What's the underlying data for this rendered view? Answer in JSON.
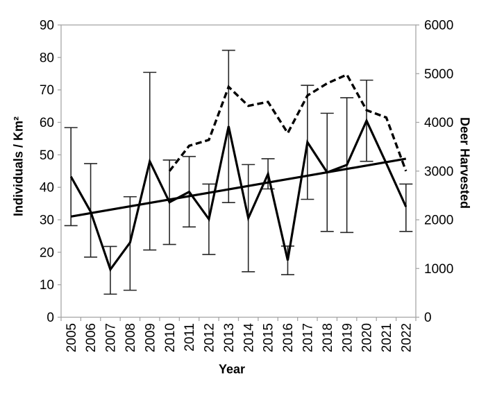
{
  "chart_data": {
    "type": "line",
    "title": "",
    "xlabel": "Year",
    "ylabel_left": "Individuals / Km²",
    "ylabel_right": "Deer Harvested",
    "grid": false,
    "legend": "none",
    "x_categories": [
      "2005",
      "2006",
      "2007",
      "2008",
      "2009",
      "2010",
      "2011",
      "2012",
      "2013",
      "2014",
      "2015",
      "2016",
      "2017",
      "2018",
      "2019",
      "2020",
      "2021",
      "2022"
    ],
    "left_axis": {
      "min": 0,
      "max": 90,
      "step": 10,
      "ticks": [
        0,
        10,
        20,
        30,
        40,
        50,
        60,
        70,
        80,
        90
      ]
    },
    "right_axis": {
      "min": 0,
      "max": 6000,
      "step": 1000,
      "ticks": [
        0,
        1000,
        2000,
        3000,
        4000,
        5000,
        6000
      ]
    },
    "series": [
      {
        "name": "individuals-per-km2",
        "axis": "left",
        "style": "solid",
        "values": [
          43.3,
          32.5,
          14.7,
          23.0,
          48.0,
          35.4,
          38.6,
          30.2,
          58.8,
          30.5,
          44.1,
          17.5,
          53.9,
          44.6,
          46.9,
          60.5,
          47.4,
          34.0
        ],
        "error_low": [
          28.2,
          18.5,
          7.1,
          8.3,
          20.7,
          22.4,
          27.8,
          19.3,
          35.3,
          14.0,
          39.5,
          13.1,
          36.3,
          26.4,
          26.1,
          48.0,
          null,
          26.4
        ],
        "error_high": [
          58.4,
          47.3,
          21.8,
          37.1,
          75.4,
          48.4,
          49.5,
          41.0,
          82.2,
          47.0,
          48.8,
          21.9,
          71.4,
          62.8,
          67.6,
          73.0,
          null,
          41.0
        ]
      },
      {
        "name": "deer-harvested",
        "axis": "right",
        "style": "dashed",
        "values": [
          null,
          null,
          null,
          null,
          null,
          3000,
          3520,
          3640,
          4730,
          4340,
          4420,
          3780,
          4550,
          4800,
          4980,
          4250,
          4100,
          3000
        ]
      },
      {
        "name": "trend-line",
        "axis": "left",
        "style": "trend",
        "x_start": "2005",
        "x_end": "2022",
        "value_start": 31.0,
        "value_end": 48.8
      }
    ],
    "colors": {
      "series": "#000000",
      "frame": "#a6a6a6",
      "tick": "#a6a6a6",
      "error_bar": "#262626",
      "background": "#ffffff"
    }
  }
}
